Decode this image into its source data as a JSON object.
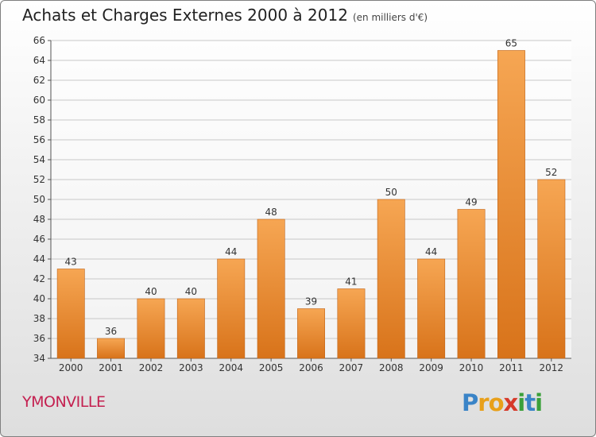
{
  "chart_data": {
    "type": "bar",
    "title": "Achats et Charges Externes 2000 à 2012",
    "subtitle": "(en milliers d'€)",
    "categories": [
      "2000",
      "2001",
      "2002",
      "2003",
      "2004",
      "2005",
      "2006",
      "2007",
      "2008",
      "2009",
      "2010",
      "2011",
      "2012"
    ],
    "values": [
      43,
      36,
      40,
      40,
      44,
      48,
      39,
      41,
      50,
      44,
      49,
      65,
      52
    ],
    "ylim": [
      34,
      66
    ],
    "yticks": [
      34,
      36,
      38,
      40,
      42,
      44,
      46,
      48,
      50,
      52,
      54,
      56,
      58,
      60,
      62,
      64,
      66
    ],
    "grid": true,
    "bar_color_top": "#f6a653",
    "bar_color_bottom": "#d8731a"
  },
  "place_name": "YMONVILLE",
  "logo": {
    "letters": [
      "P",
      "r",
      "o",
      "x",
      "i",
      "t",
      "i"
    ],
    "colors": [
      "#3a84c7",
      "#e8a01a",
      "#e8a01a",
      "#d63a2a",
      "#3aa03a",
      "#3a84c7",
      "#3aa03a"
    ]
  }
}
